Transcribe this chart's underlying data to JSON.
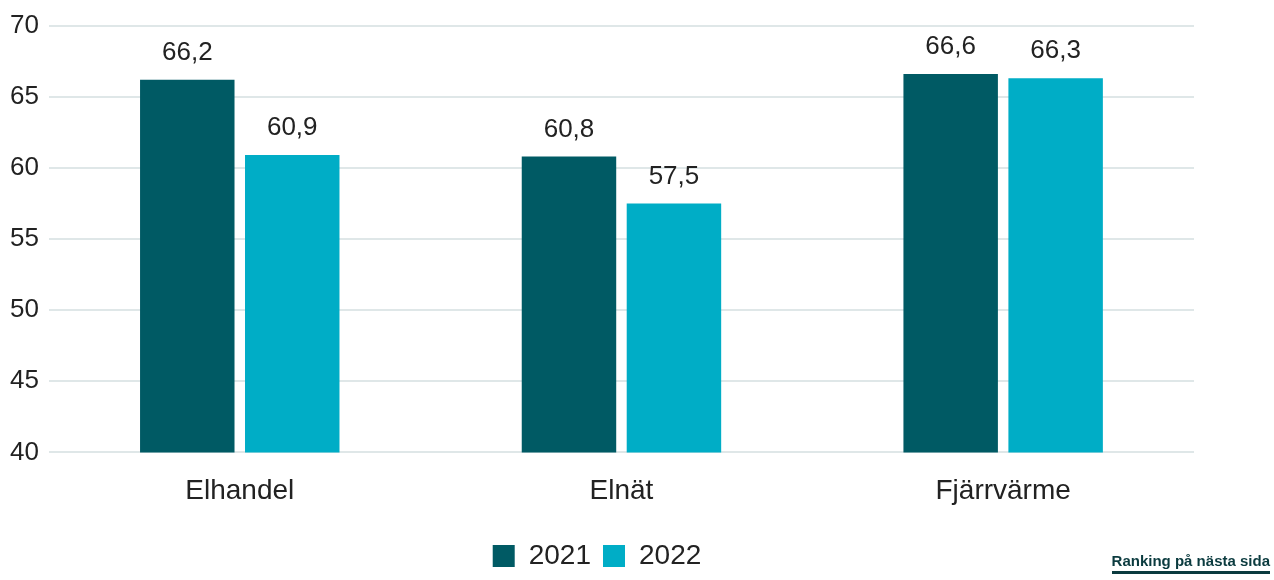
{
  "chart_data": {
    "type": "bar",
    "categories": [
      "Elhandel",
      "Elnät",
      "Fjärrvärme"
    ],
    "series": [
      {
        "name": "2021",
        "color": "#005a64",
        "values": [
          66.2,
          60.8,
          66.6
        ],
        "value_labels": [
          "66,2",
          "60,8",
          "66,6"
        ]
      },
      {
        "name": "2022",
        "color": "#00adc6",
        "values": [
          60.9,
          57.5,
          66.3
        ],
        "value_labels": [
          "60,9",
          "57,5",
          "66,3"
        ]
      }
    ],
    "ylim": [
      40,
      70
    ],
    "yticks": [
      40,
      45,
      50,
      55,
      60,
      65,
      70
    ],
    "grid": "y",
    "legend": "bottom",
    "annotations": [
      "Ranking på nästa sida"
    ]
  }
}
